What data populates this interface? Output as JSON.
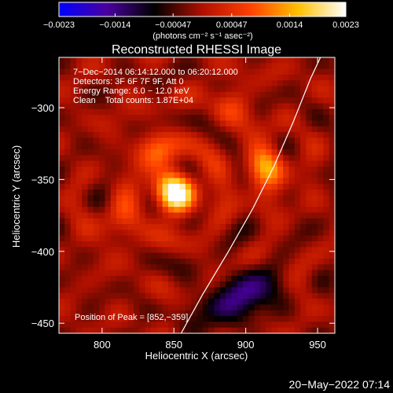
{
  "chart_data": {
    "type": "heatmap",
    "title": "Reconstructed RHESSI Image",
    "xlabel": "Heliocentric X (arcsec)",
    "ylabel": "Heliocentric Y (arcsec)",
    "xlim": [
      770,
      962
    ],
    "ylim": [
      -457,
      -265
    ],
    "x_ticks": [
      800,
      850,
      900,
      950
    ],
    "y_ticks": [
      -300,
      -350,
      -400,
      -450
    ],
    "x_tick_labels": [
      "800",
      "850",
      "900",
      "950"
    ],
    "y_tick_labels": [
      "−300",
      "−350",
      "−400",
      "−450"
    ],
    "colorbar": {
      "min": -0.0023,
      "max": 0.0023,
      "ticks": [
        -0.0023,
        -0.0014,
        -0.00047,
        0.00047,
        0.0014,
        0.0023
      ],
      "tick_labels": [
        "−0.0023",
        "−0.0014",
        "−0.00047",
        "0.00047",
        "0.0014",
        "0.0023"
      ],
      "units": "(photons cm⁻² s⁻¹ asec⁻²)",
      "colors": [
        "#0000ff",
        "#4a00a0",
        "#000000",
        "#b01000",
        "#ff4000",
        "#ffc000",
        "#ffffff"
      ]
    },
    "info_lines": [
      "7−Dec−2014 06:14:12.000 to 06:20:12.000",
      "Detectors: 3F 6F 7F 9F, Att 0",
      "Energy Range: 6.0 − 12.0 keV",
      "Clean    Total counts: 1.87E+04"
    ],
    "peak_label": "Position of Peak = [852,−359]",
    "peak": {
      "x": 852,
      "y": -359
    },
    "sources": [
      {
        "x": 852,
        "y": -359,
        "amplitude": 0.0023
      },
      {
        "x": 913,
        "y": -343,
        "amplitude": 0.00145
      },
      {
        "x": 838,
        "y": -330,
        "amplitude": 0.0009
      },
      {
        "x": 812,
        "y": -378,
        "amplitude": 0.0007
      },
      {
        "x": 890,
        "y": -300,
        "amplitude": 0.0006
      },
      {
        "x": 905,
        "y": -428,
        "amplitude": -0.0012
      },
      {
        "x": 880,
        "y": -440,
        "amplitude": -0.0008
      }
    ],
    "limb_curve": [
      {
        "x": 855,
        "y": -457
      },
      {
        "x": 870,
        "y": -430
      },
      {
        "x": 888,
        "y": -400
      },
      {
        "x": 905,
        "y": -370
      },
      {
        "x": 920,
        "y": -340
      },
      {
        "x": 933,
        "y": -310
      },
      {
        "x": 945,
        "y": -280
      },
      {
        "x": 952,
        "y": -265
      }
    ]
  },
  "footer": {
    "timestamp": "20−May−2022 07:14"
  }
}
